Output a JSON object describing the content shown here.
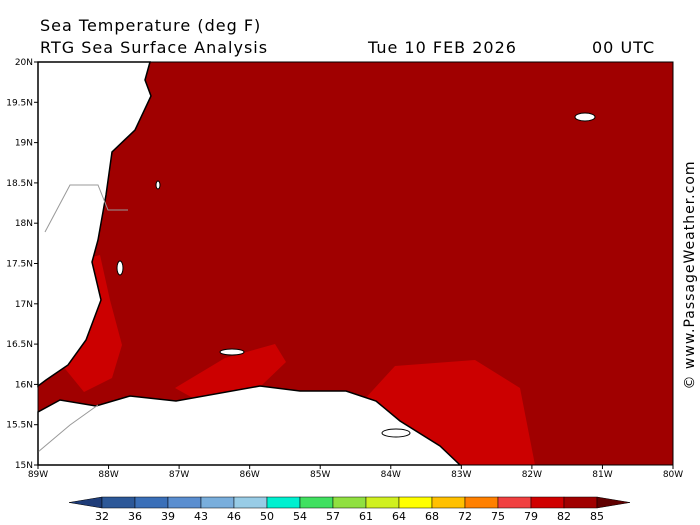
{
  "header": {
    "title": "Sea Temperature (deg F)",
    "subtitle": "RTG Sea Surface Analysis",
    "date": "Tue 10 FEB 2026",
    "time": "00 UTC"
  },
  "axes": {
    "lat_labels": [
      "20N",
      "19.5N",
      "19N",
      "18.5N",
      "18N",
      "17.5N",
      "17N",
      "16.5N",
      "16N",
      "15.5N",
      "15N"
    ],
    "lon_labels": [
      "89W",
      "88W",
      "87W",
      "86W",
      "85W",
      "84W",
      "83W",
      "82W",
      "81W",
      "80W"
    ]
  },
  "colorbar": {
    "ticks": [
      32,
      36,
      39,
      43,
      46,
      50,
      54,
      57,
      61,
      64,
      68,
      72,
      75,
      79,
      82,
      85
    ],
    "colors": [
      "#1e3c78",
      "#2c5898",
      "#3a6fb8",
      "#5a8ed0",
      "#79aedc",
      "#98cce6",
      "#00f0d0",
      "#40e060",
      "#90e040",
      "#d0f020",
      "#ffff00",
      "#ffc000",
      "#ff8000",
      "#f04040",
      "#d00000",
      "#a00000",
      "#800000",
      "#600000"
    ]
  },
  "watermark": "© www.PassageWeather.com"
}
